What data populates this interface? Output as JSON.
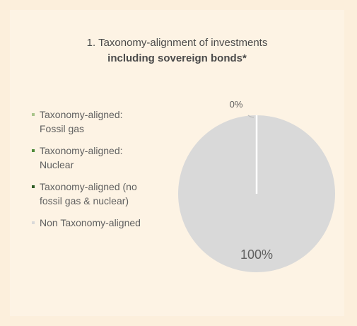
{
  "title_line1": "1. Taxonomy-alignment of investments",
  "title_line2": "including sovereign bonds*",
  "legend": [
    {
      "line1": "Taxonomy-aligned:",
      "line2": "Fossil gas",
      "color": "#a9c48a"
    },
    {
      "line1": "Taxonomy-aligned:",
      "line2": "Nuclear",
      "color": "#4f8a3a"
    },
    {
      "line1": "Taxonomy-aligned (no",
      "line2": "fossil gas & nuclear)",
      "color": "#2d5b24"
    },
    {
      "line1": "Non Taxonomy-aligned",
      "line2": "",
      "color": "#d9d9d9"
    }
  ],
  "chart_data": {
    "type": "pie",
    "labels": [
      "Taxonomy-aligned",
      "Non Taxonomy-aligned"
    ],
    "values": [
      0,
      100
    ],
    "data_labels": [
      "0%",
      "100%"
    ],
    "colors": [
      "#2d5b24",
      "#d9d9d9"
    ],
    "legend_placement": "left"
  }
}
